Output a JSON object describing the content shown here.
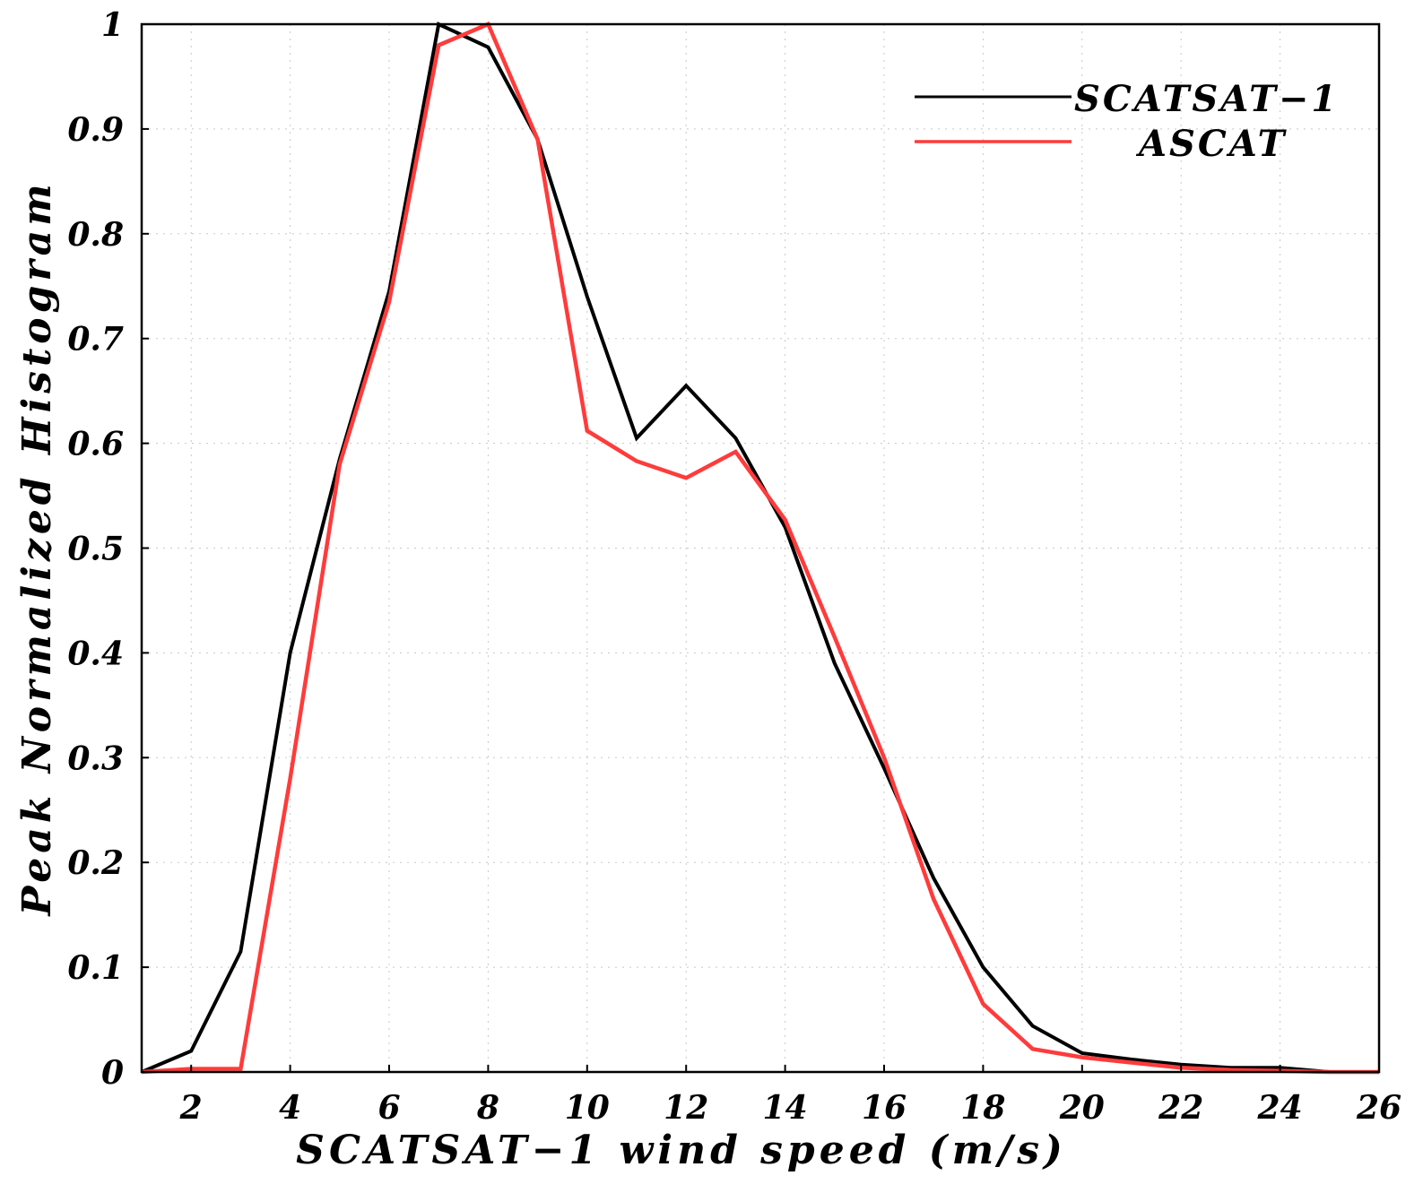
{
  "chart_data": {
    "type": "line",
    "title": "",
    "xlabel": "SCATSAT−1 wind speed (m/s)",
    "ylabel": "Peak Normalized Histogram",
    "xlim": [
      1,
      26
    ],
    "ylim": [
      0,
      1
    ],
    "grid": true,
    "legend_position": "top-right",
    "x_ticks": [
      2,
      4,
      6,
      8,
      10,
      12,
      14,
      16,
      18,
      20,
      22,
      24,
      26
    ],
    "y_ticks": [
      0,
      0.1,
      0.2,
      0.3,
      0.4,
      0.5,
      0.6,
      0.7,
      0.8,
      0.9,
      1
    ],
    "x_tick_labels": [
      "2",
      "4",
      "6",
      "8",
      "10",
      "12",
      "14",
      "16",
      "18",
      "20",
      "22",
      "24",
      "26"
    ],
    "y_tick_labels": [
      "0",
      "0.1",
      "0.2",
      "0.3",
      "0.4",
      "0.5",
      "0.6",
      "0.7",
      "0.8",
      "0.9",
      "1"
    ],
    "x": [
      1,
      2,
      3,
      4,
      5,
      6,
      7,
      8,
      9,
      10,
      11,
      12,
      13,
      14,
      15,
      16,
      17,
      18,
      19,
      20,
      21,
      22,
      23,
      24,
      25,
      26
    ],
    "series": [
      {
        "name": "SCATSAT−1",
        "color": "#000000",
        "values": [
          0.0,
          0.02,
          0.115,
          0.4,
          0.585,
          0.745,
          1.0,
          0.978,
          0.89,
          0.74,
          0.605,
          0.655,
          0.605,
          0.52,
          0.39,
          0.29,
          0.185,
          0.1,
          0.044,
          0.018,
          0.012,
          0.007,
          0.004,
          0.004,
          0.0,
          0.0
        ]
      },
      {
        "name": "ASCAT",
        "color": "#ff3b3b",
        "values": [
          0.0,
          0.003,
          0.003,
          0.28,
          0.58,
          0.735,
          0.98,
          1.0,
          0.89,
          0.612,
          0.583,
          0.567,
          0.592,
          0.527,
          0.415,
          0.3,
          0.165,
          0.065,
          0.022,
          0.014,
          0.009,
          0.004,
          0.002,
          0.001,
          0.0,
          0.0
        ]
      }
    ]
  }
}
